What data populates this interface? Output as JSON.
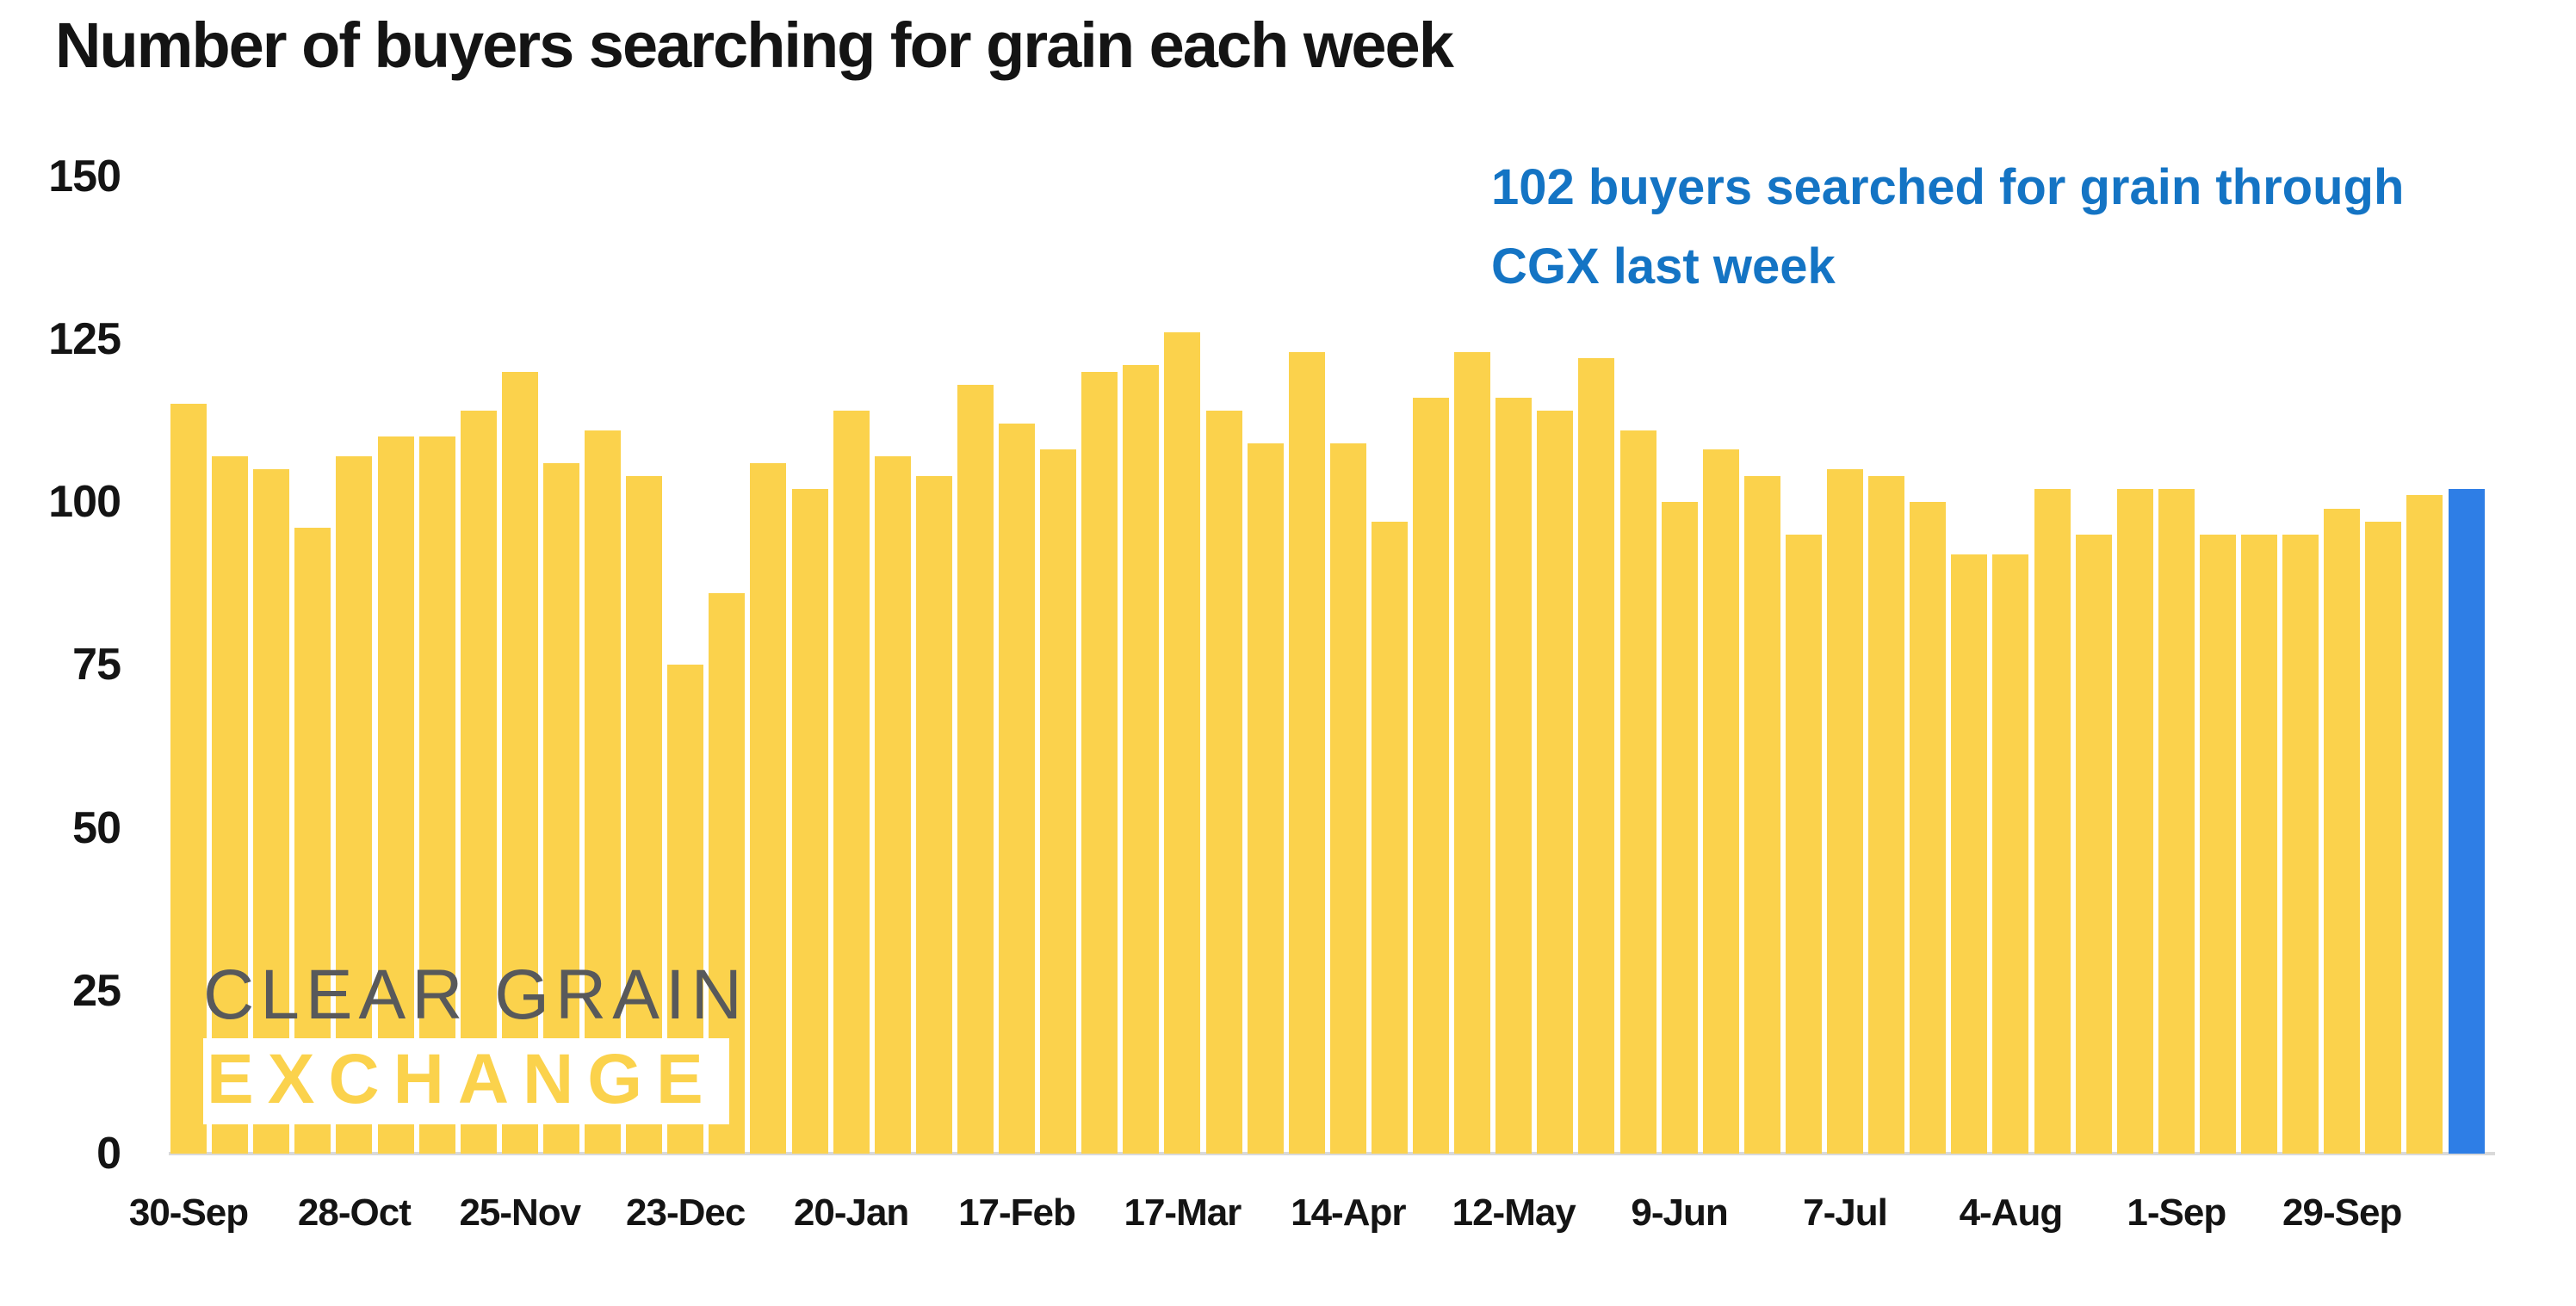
{
  "chart_data": {
    "type": "bar",
    "title": "Number of buyers searching for grain each week",
    "values": [
      115,
      107,
      105,
      96,
      107,
      110,
      110,
      114,
      120,
      106,
      111,
      104,
      75,
      86,
      106,
      102,
      114,
      107,
      104,
      118,
      112,
      108,
      120,
      121,
      126,
      114,
      109,
      123,
      109,
      97,
      116,
      123,
      116,
      114,
      122,
      111,
      100,
      108,
      104,
      95,
      105,
      104,
      100,
      92,
      92,
      102,
      95,
      102,
      102,
      95,
      95,
      95,
      99,
      97,
      101,
      102
    ],
    "x_tick_labels": [
      "30-Sep",
      "28-Oct",
      "25-Nov",
      "23-Dec",
      "20-Jan",
      "17-Feb",
      "17-Mar",
      "14-Apr",
      "12-May",
      "9-Jun",
      "7-Jul",
      "4-Aug",
      "1-Sep",
      "29-Sep"
    ],
    "x_tick_every": 4,
    "y_ticks": [
      0,
      25,
      50,
      75,
      100,
      125,
      150
    ],
    "ylim": [
      0,
      150
    ],
    "grid": false,
    "legend": false,
    "bar_color": "#FBD24C",
    "highlight": {
      "index": 55,
      "value": 102,
      "color": "#2E7EE6"
    }
  },
  "annotation": {
    "line1": "102 buyers searched for grain through",
    "line2": "CGX last week",
    "color": "#1474C4"
  },
  "watermark": {
    "line1": "CLEAR GRAIN",
    "line2": "EXCHANGE"
  }
}
